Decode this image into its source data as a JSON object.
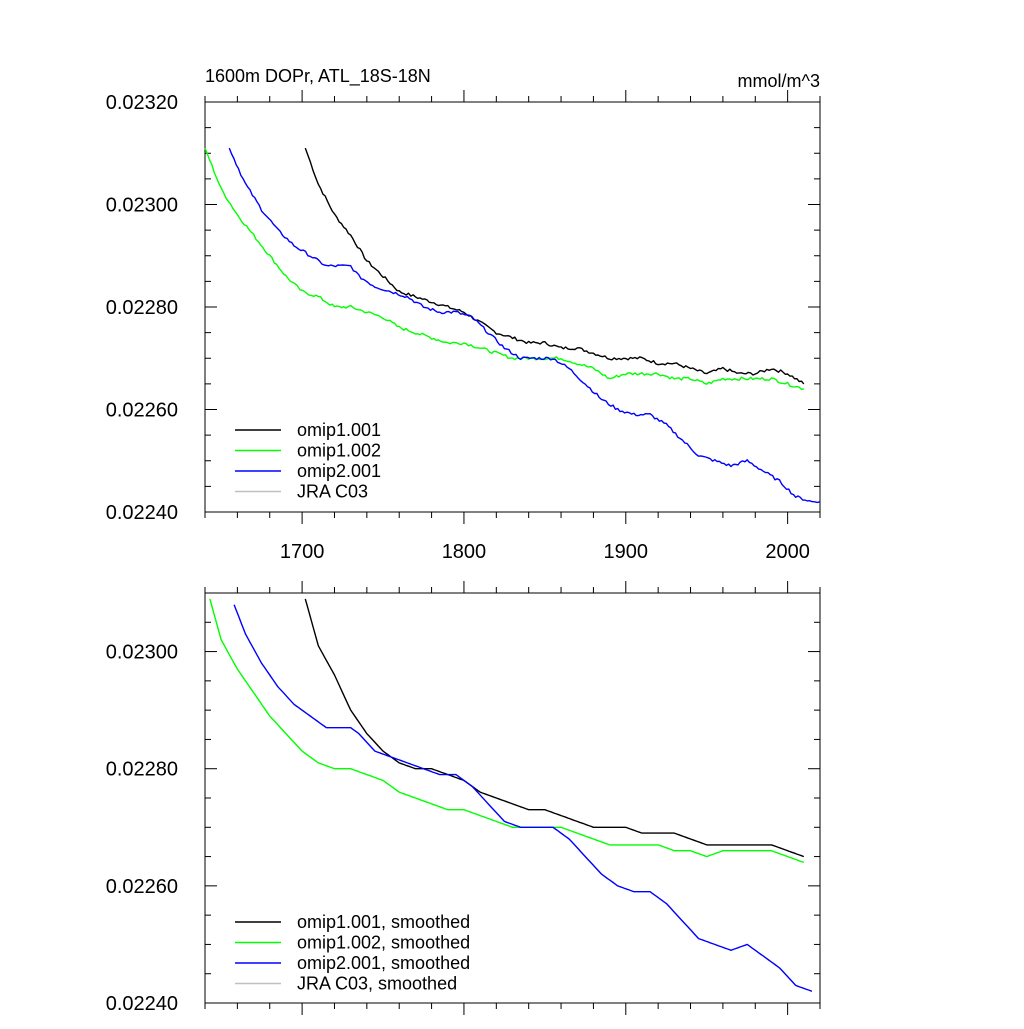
{
  "chart_data": [
    {
      "type": "line",
      "title": "1600m DOPr, ATL_18S-18N",
      "units": "mmol/m^3",
      "xlim": [
        1640,
        2020
      ],
      "ylim": [
        0.0224,
        0.0232
      ],
      "x_ticks": [
        1700,
        1800,
        1900,
        2000
      ],
      "x_tick_labels": [
        "1700",
        "1800",
        "1900",
        "2000"
      ],
      "y_ticks": [
        0.0224,
        0.0226,
        0.0228,
        0.023,
        0.0232
      ],
      "y_tick_labels": [
        "0.02240",
        "0.02260",
        "0.02280",
        "0.02300",
        "0.02320"
      ],
      "grid": false,
      "legend_position": "bottom-left",
      "series": [
        {
          "name": "omip1.001",
          "color": "#000000",
          "noisy": true,
          "x": [
            1702,
            1710,
            1720,
            1730,
            1740,
            1750,
            1760,
            1770,
            1780,
            1790,
            1800,
            1810,
            1820,
            1830,
            1840,
            1850,
            1860,
            1870,
            1880,
            1890,
            1900,
            1910,
            1920,
            1930,
            1940,
            1950,
            1960,
            1970,
            1980,
            1990,
            2000,
            2010
          ],
          "y": [
            0.02311,
            0.02304,
            0.02298,
            0.02294,
            0.02289,
            0.02286,
            0.02283,
            0.02282,
            0.02281,
            0.0228,
            0.02279,
            0.02277,
            0.02275,
            0.02274,
            0.02273,
            0.02273,
            0.02272,
            0.02272,
            0.02271,
            0.0227,
            0.0227,
            0.0227,
            0.02269,
            0.02269,
            0.02268,
            0.02267,
            0.02268,
            0.02267,
            0.02267,
            0.02268,
            0.02267,
            0.02265
          ]
        },
        {
          "name": "omip1.002",
          "color": "#00ff00",
          "noisy": true,
          "x": [
            1640,
            1650,
            1660,
            1670,
            1680,
            1690,
            1700,
            1710,
            1720,
            1730,
            1740,
            1750,
            1760,
            1770,
            1780,
            1790,
            1800,
            1810,
            1820,
            1830,
            1840,
            1850,
            1860,
            1870,
            1880,
            1890,
            1900,
            1910,
            1920,
            1930,
            1940,
            1950,
            1960,
            1970,
            1980,
            1990,
            2000,
            2010
          ],
          "y": [
            0.02311,
            0.02303,
            0.02298,
            0.02294,
            0.0229,
            0.02286,
            0.02283,
            0.02282,
            0.0228,
            0.0228,
            0.02279,
            0.02278,
            0.02276,
            0.02275,
            0.02274,
            0.02273,
            0.02273,
            0.02272,
            0.02271,
            0.0227,
            0.0227,
            0.0227,
            0.0227,
            0.02269,
            0.02268,
            0.02266,
            0.02267,
            0.02267,
            0.02267,
            0.02266,
            0.02266,
            0.02265,
            0.02266,
            0.02266,
            0.02266,
            0.02266,
            0.02265,
            0.02264
          ]
        },
        {
          "name": "omip2.001",
          "color": "#0000ff",
          "noisy": true,
          "x": [
            1655,
            1665,
            1675,
            1685,
            1695,
            1705,
            1715,
            1725,
            1730,
            1735,
            1745,
            1755,
            1765,
            1775,
            1785,
            1795,
            1805,
            1815,
            1825,
            1835,
            1845,
            1855,
            1865,
            1875,
            1885,
            1895,
            1905,
            1915,
            1925,
            1935,
            1945,
            1955,
            1965,
            1975,
            1985,
            1995,
            2005,
            2015,
            2020
          ],
          "y": [
            0.02311,
            0.02304,
            0.02299,
            0.02295,
            0.02292,
            0.0229,
            0.02288,
            0.02288,
            0.02288,
            0.02286,
            0.02284,
            0.02283,
            0.02282,
            0.0228,
            0.02279,
            0.02279,
            0.02278,
            0.02275,
            0.02272,
            0.0227,
            0.0227,
            0.0227,
            0.02268,
            0.02265,
            0.02262,
            0.0226,
            0.02259,
            0.02259,
            0.02257,
            0.02254,
            0.02251,
            0.0225,
            0.02249,
            0.0225,
            0.02248,
            0.02246,
            0.02243,
            0.02242,
            0.02242
          ]
        },
        {
          "name": "JRA C03",
          "color": "#c0c0c0",
          "x": [],
          "y": []
        }
      ]
    },
    {
      "type": "line",
      "xlim": [
        1640,
        2020
      ],
      "ylim": [
        0.0224,
        0.0231
      ],
      "x_ticks": [
        1700,
        1800,
        1900,
        2000
      ],
      "x_tick_labels": [],
      "y_ticks": [
        0.0224,
        0.0226,
        0.0228,
        0.023
      ],
      "y_tick_labels": [
        "0.02240",
        "0.02260",
        "0.02280",
        "0.02300"
      ],
      "grid": false,
      "legend_position": "bottom-left",
      "series": [
        {
          "name": "omip1.001, smoothed",
          "color": "#000000",
          "noisy": false,
          "x": [
            1702,
            1710,
            1720,
            1730,
            1740,
            1750,
            1760,
            1770,
            1780,
            1790,
            1800,
            1810,
            1820,
            1830,
            1840,
            1850,
            1860,
            1870,
            1880,
            1890,
            1900,
            1910,
            1920,
            1930,
            1940,
            1950,
            1960,
            1970,
            1980,
            1990,
            2000,
            2010
          ],
          "y": [
            0.02309,
            0.02301,
            0.02296,
            0.0229,
            0.02286,
            0.02283,
            0.02281,
            0.0228,
            0.0228,
            0.02279,
            0.02278,
            0.02276,
            0.02275,
            0.02274,
            0.02273,
            0.02273,
            0.02272,
            0.02271,
            0.0227,
            0.0227,
            0.0227,
            0.02269,
            0.02269,
            0.02269,
            0.02268,
            0.02267,
            0.02267,
            0.02267,
            0.02267,
            0.02267,
            0.02266,
            0.02265
          ]
        },
        {
          "name": "omip1.002, smoothed",
          "color": "#00ff00",
          "noisy": false,
          "x": [
            1643,
            1650,
            1660,
            1670,
            1680,
            1690,
            1700,
            1710,
            1720,
            1730,
            1740,
            1750,
            1760,
            1770,
            1780,
            1790,
            1800,
            1810,
            1820,
            1830,
            1840,
            1850,
            1860,
            1870,
            1880,
            1890,
            1900,
            1910,
            1920,
            1930,
            1940,
            1950,
            1960,
            1970,
            1980,
            1990,
            2000,
            2010
          ],
          "y": [
            0.02309,
            0.02302,
            0.02297,
            0.02293,
            0.02289,
            0.02286,
            0.02283,
            0.02281,
            0.0228,
            0.0228,
            0.02279,
            0.02278,
            0.02276,
            0.02275,
            0.02274,
            0.02273,
            0.02273,
            0.02272,
            0.02271,
            0.0227,
            0.0227,
            0.0227,
            0.0227,
            0.02269,
            0.02268,
            0.02267,
            0.02267,
            0.02267,
            0.02267,
            0.02266,
            0.02266,
            0.02265,
            0.02266,
            0.02266,
            0.02266,
            0.02266,
            0.02265,
            0.02264
          ]
        },
        {
          "name": "omip2.001, smoothed",
          "color": "#0000ff",
          "noisy": false,
          "x": [
            1658,
            1665,
            1675,
            1685,
            1695,
            1705,
            1715,
            1725,
            1730,
            1735,
            1745,
            1755,
            1765,
            1775,
            1785,
            1795,
            1805,
            1815,
            1825,
            1835,
            1845,
            1855,
            1865,
            1875,
            1885,
            1895,
            1905,
            1915,
            1925,
            1935,
            1945,
            1955,
            1965,
            1975,
            1985,
            1995,
            2005,
            2015
          ],
          "y": [
            0.02308,
            0.02303,
            0.02298,
            0.02294,
            0.02291,
            0.02289,
            0.02287,
            0.02287,
            0.02287,
            0.02286,
            0.02283,
            0.02282,
            0.02281,
            0.0228,
            0.02279,
            0.02279,
            0.02277,
            0.02274,
            0.02271,
            0.0227,
            0.0227,
            0.0227,
            0.02268,
            0.02265,
            0.02262,
            0.0226,
            0.02259,
            0.02259,
            0.02257,
            0.02254,
            0.02251,
            0.0225,
            0.02249,
            0.0225,
            0.02248,
            0.02246,
            0.02243,
            0.02242
          ]
        },
        {
          "name": "JRA C03, smoothed",
          "color": "#c0c0c0",
          "x": [],
          "y": []
        }
      ]
    }
  ]
}
